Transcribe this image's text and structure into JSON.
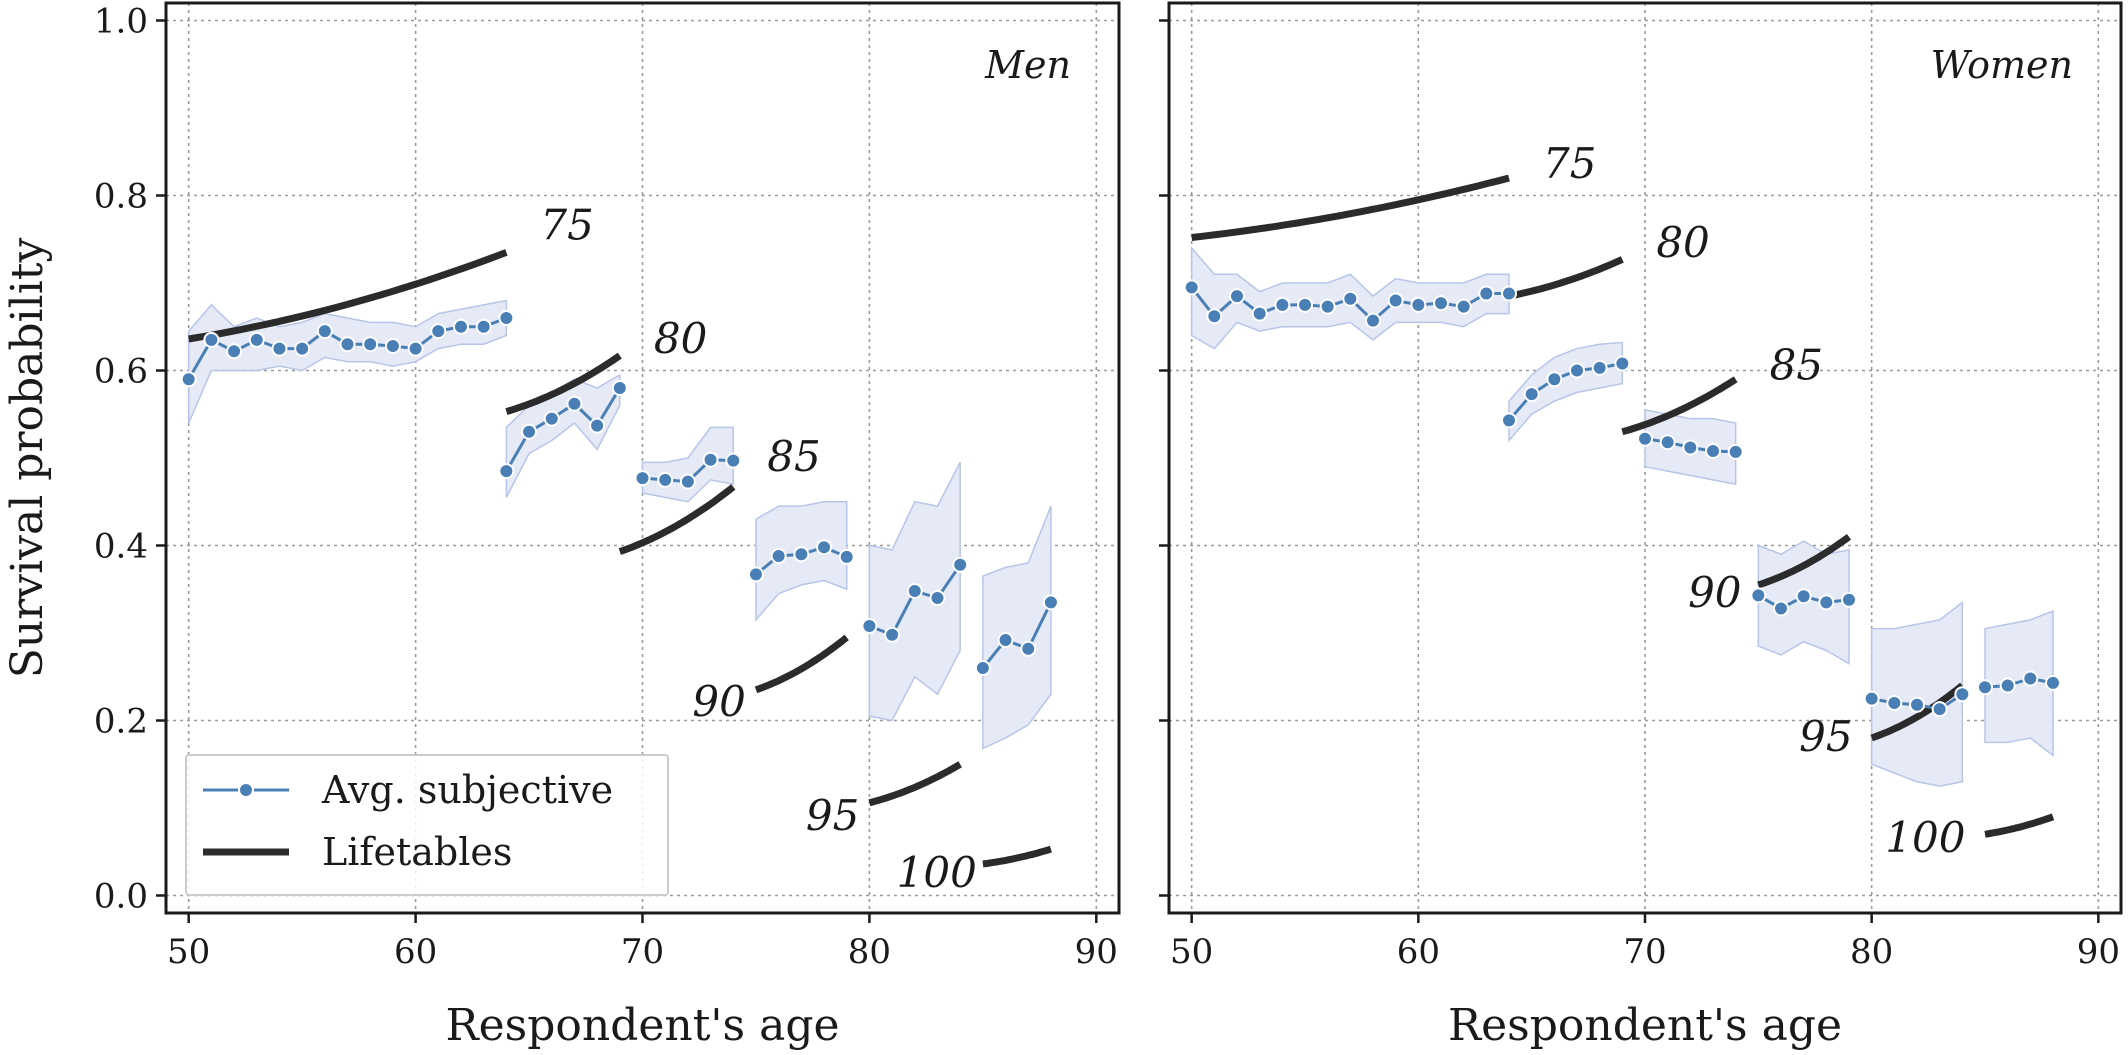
{
  "chart_data": {
    "type": "line",
    "ylabel": "Survival probability",
    "xlabel": "Respondent's age",
    "xlim": [
      49,
      91
    ],
    "ylim": [
      -0.02,
      1.02
    ],
    "xticks": [
      50,
      60,
      70,
      80,
      90
    ],
    "yticks": [
      0.0,
      0.2,
      0.4,
      0.6,
      0.8,
      1.0
    ],
    "ytick_labels": [
      "0.0",
      "0.2",
      "0.4",
      "0.6",
      "0.8",
      "1.0"
    ],
    "grid": true,
    "legend": {
      "placement": "lower-left",
      "entries": [
        "Avg. subjective",
        "Lifetables"
      ]
    },
    "panels": [
      {
        "title": "Men",
        "subjective": [
          {
            "target": 75,
            "x": [
              50,
              51,
              52,
              53,
              54,
              55,
              56,
              57,
              58,
              59,
              60,
              61,
              62,
              63,
              64
            ],
            "y": [
              0.59,
              0.635,
              0.622,
              0.635,
              0.625,
              0.625,
              0.645,
              0.63,
              0.63,
              0.628,
              0.625,
              0.645,
              0.65,
              0.65,
              0.66
            ],
            "lower": [
              0.54,
              0.6,
              0.6,
              0.6,
              0.605,
              0.6,
              0.615,
              0.61,
              0.61,
              0.605,
              0.61,
              0.625,
              0.63,
              0.63,
              0.64
            ],
            "upper": [
              0.645,
              0.675,
              0.65,
              0.66,
              0.65,
              0.655,
              0.665,
              0.66,
              0.655,
              0.655,
              0.65,
              0.665,
              0.67,
              0.675,
              0.68
            ]
          },
          {
            "target": 80,
            "x": [
              64,
              65,
              66,
              67,
              68,
              69
            ],
            "y": [
              0.485,
              0.53,
              0.545,
              0.562,
              0.537,
              0.58
            ],
            "lower": [
              0.455,
              0.505,
              0.52,
              0.54,
              0.51,
              0.56
            ],
            "upper": [
              0.535,
              0.56,
              0.575,
              0.59,
              0.58,
              0.595
            ]
          },
          {
            "target": 85,
            "x": [
              70,
              71,
              72,
              73,
              74
            ],
            "y": [
              0.477,
              0.475,
              0.473,
              0.498,
              0.497
            ],
            "lower": [
              0.46,
              0.455,
              0.45,
              0.475,
              0.47
            ],
            "upper": [
              0.495,
              0.495,
              0.5,
              0.535,
              0.535
            ]
          },
          {
            "target": 90,
            "x": [
              75,
              76,
              77,
              78,
              79
            ],
            "y": [
              0.367,
              0.388,
              0.39,
              0.398,
              0.387
            ],
            "lower": [
              0.315,
              0.345,
              0.355,
              0.36,
              0.35
            ],
            "upper": [
              0.43,
              0.445,
              0.445,
              0.45,
              0.45
            ]
          },
          {
            "target": 95,
            "x": [
              80,
              81,
              82,
              83,
              84
            ],
            "y": [
              0.308,
              0.298,
              0.348,
              0.34,
              0.378
            ],
            "lower": [
              0.205,
              0.2,
              0.25,
              0.23,
              0.28
            ],
            "upper": [
              0.4,
              0.395,
              0.45,
              0.445,
              0.495
            ]
          },
          {
            "target": 100,
            "x": [
              85,
              86,
              87,
              88
            ],
            "y": [
              0.26,
              0.292,
              0.282,
              0.335
            ],
            "lower": [
              0.168,
              0.18,
              0.195,
              0.23
            ],
            "upper": [
              0.365,
              0.375,
              0.38,
              0.445
            ]
          }
        ],
        "lifetables": [
          {
            "label": "75",
            "x": [
              50,
              64
            ],
            "y": [
              0.636,
              0.735
            ],
            "label_at": [
              65.5,
              0.75
            ]
          },
          {
            "label": "80",
            "x": [
              64,
              69
            ],
            "y": [
              0.553,
              0.617
            ],
            "label_at": [
              70.5,
              0.62
            ]
          },
          {
            "label": "85",
            "x": [
              69,
              74
            ],
            "y": [
              0.393,
              0.467
            ],
            "label_at": [
              75.5,
              0.485
            ]
          },
          {
            "label": "90",
            "x": [
              75,
              79
            ],
            "y": [
              0.235,
              0.295
            ],
            "label_at": [
              72.2,
              0.205
            ]
          },
          {
            "label": "95",
            "x": [
              80,
              84
            ],
            "y": [
              0.106,
              0.15
            ],
            "label_at": [
              77.2,
              0.075
            ]
          },
          {
            "label": "100",
            "x": [
              85,
              88
            ],
            "y": [
              0.036,
              0.053
            ],
            "label_at": [
              81.2,
              0.01
            ]
          }
        ]
      },
      {
        "title": "Women",
        "subjective": [
          {
            "target": 75,
            "x": [
              50,
              51,
              52,
              53,
              54,
              55,
              56,
              57,
              58,
              59,
              60,
              61,
              62,
              63,
              64
            ],
            "y": [
              0.695,
              0.662,
              0.685,
              0.665,
              0.675,
              0.675,
              0.673,
              0.682,
              0.657,
              0.68,
              0.675,
              0.677,
              0.673,
              0.688,
              0.688
            ],
            "lower": [
              0.64,
              0.625,
              0.655,
              0.645,
              0.65,
              0.65,
              0.65,
              0.655,
              0.635,
              0.655,
              0.655,
              0.655,
              0.65,
              0.665,
              0.665
            ],
            "upper": [
              0.74,
              0.71,
              0.71,
              0.69,
              0.7,
              0.7,
              0.7,
              0.71,
              0.685,
              0.705,
              0.7,
              0.7,
              0.7,
              0.71,
              0.71
            ]
          },
          {
            "target": 80,
            "x": [
              64,
              65,
              66,
              67,
              68,
              69
            ],
            "y": [
              0.543,
              0.573,
              0.59,
              0.6,
              0.603,
              0.608
            ],
            "lower": [
              0.52,
              0.55,
              0.565,
              0.575,
              0.58,
              0.585
            ],
            "upper": [
              0.565,
              0.595,
              0.615,
              0.625,
              0.63,
              0.632
            ]
          },
          {
            "target": 85,
            "x": [
              70,
              71,
              72,
              73,
              74
            ],
            "y": [
              0.522,
              0.518,
              0.512,
              0.508,
              0.507
            ],
            "lower": [
              0.49,
              0.485,
              0.48,
              0.475,
              0.47
            ],
            "upper": [
              0.555,
              0.55,
              0.545,
              0.545,
              0.54
            ]
          },
          {
            "target": 90,
            "x": [
              75,
              76,
              77,
              78,
              79
            ],
            "y": [
              0.343,
              0.328,
              0.342,
              0.335,
              0.338
            ],
            "lower": [
              0.285,
              0.275,
              0.29,
              0.28,
              0.265
            ],
            "upper": [
              0.4,
              0.39,
              0.405,
              0.39,
              0.395
            ]
          },
          {
            "target": 95,
            "x": [
              80,
              81,
              82,
              83,
              84
            ],
            "y": [
              0.225,
              0.22,
              0.218,
              0.213,
              0.23
            ],
            "lower": [
              0.15,
              0.14,
              0.13,
              0.125,
              0.13
            ],
            "upper": [
              0.305,
              0.305,
              0.31,
              0.315,
              0.335
            ]
          },
          {
            "target": 100,
            "x": [
              85,
              86,
              87,
              88
            ],
            "y": [
              0.238,
              0.24,
              0.248,
              0.243
            ],
            "lower": [
              0.175,
              0.175,
              0.18,
              0.16
            ],
            "upper": [
              0.305,
              0.31,
              0.315,
              0.325
            ]
          }
        ],
        "lifetables": [
          {
            "label": "75",
            "x": [
              50,
              64
            ],
            "y": [
              0.752,
              0.82
            ],
            "label_at": [
              65.5,
              0.82
            ]
          },
          {
            "label": "80",
            "x": [
              64,
              69
            ],
            "y": [
              0.685,
              0.727
            ],
            "label_at": [
              70.5,
              0.73
            ]
          },
          {
            "label": "85",
            "x": [
              69,
              74
            ],
            "y": [
              0.53,
              0.59
            ],
            "label_at": [
              75.5,
              0.59
            ]
          },
          {
            "label": "90",
            "x": [
              75,
              79
            ],
            "y": [
              0.355,
              0.41
            ],
            "label_at": [
              71.9,
              0.33
            ]
          },
          {
            "label": "95",
            "x": [
              80,
              84
            ],
            "y": [
              0.18,
              0.24
            ],
            "label_at": [
              76.8,
              0.165
            ]
          },
          {
            "label": "100",
            "x": [
              85,
              88
            ],
            "y": [
              0.07,
              0.09
            ],
            "label_at": [
              80.6,
              0.05
            ]
          }
        ]
      }
    ]
  }
}
